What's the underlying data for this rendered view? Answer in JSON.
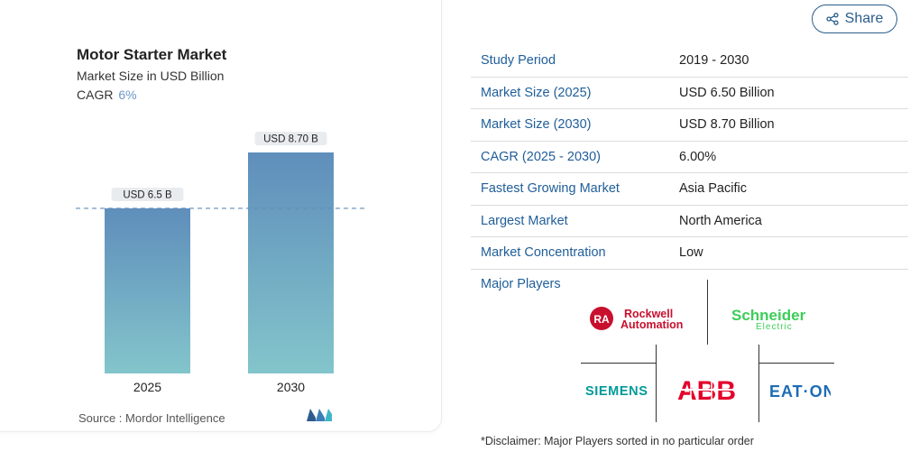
{
  "chart_data": {
    "type": "bar",
    "title": "Motor Starter Market",
    "subtitle": "Market Size in USD Billion",
    "cagr_label": "CAGR",
    "cagr_value": "6%",
    "categories": [
      "2025",
      "2030"
    ],
    "values": [
      6.5,
      8.7
    ],
    "data_labels": [
      "USD 6.5 B",
      "USD 8.70 B"
    ],
    "ylim": [
      0,
      8.7
    ],
    "grid": false,
    "colors": {
      "bar_top": "#5f8ebb",
      "bar_bottom": "#83c5cb",
      "label_bg": "#e9ecef",
      "dashed_line": "#5f8ebb"
    }
  },
  "source": "Source :  Mordor Intelligence",
  "share_label": "Share",
  "table": [
    {
      "key": "Study Period",
      "value": "2019 - 2030"
    },
    {
      "key": "Market Size (2025)",
      "value": "USD 6.50 Billion"
    },
    {
      "key": "Market Size (2030)",
      "value": "USD 8.70 Billion"
    },
    {
      "key": "CAGR (2025 - 2030)",
      "value": "6.00%"
    },
    {
      "key": "Fastest Growing Market",
      "value": "Asia Pacific"
    },
    {
      "key": "Largest Market",
      "value": "North America"
    },
    {
      "key": "Market Concentration",
      "value": "Low"
    }
  ],
  "major_players": {
    "title": "Major Players",
    "logos": [
      "Rockwell Automation",
      "Schneider Electric",
      "SIEMENS",
      "ABB",
      "EATON"
    ]
  },
  "disclaimer": "*Disclaimer: Major Players sorted in no particular order",
  "colors": {
    "accent": "#1f5e99",
    "rockwell": "#c8102e",
    "schneider": "#3dcd58",
    "siemens": "#009999",
    "abb": "#e4002b",
    "eaton": "#1e6cb5"
  }
}
